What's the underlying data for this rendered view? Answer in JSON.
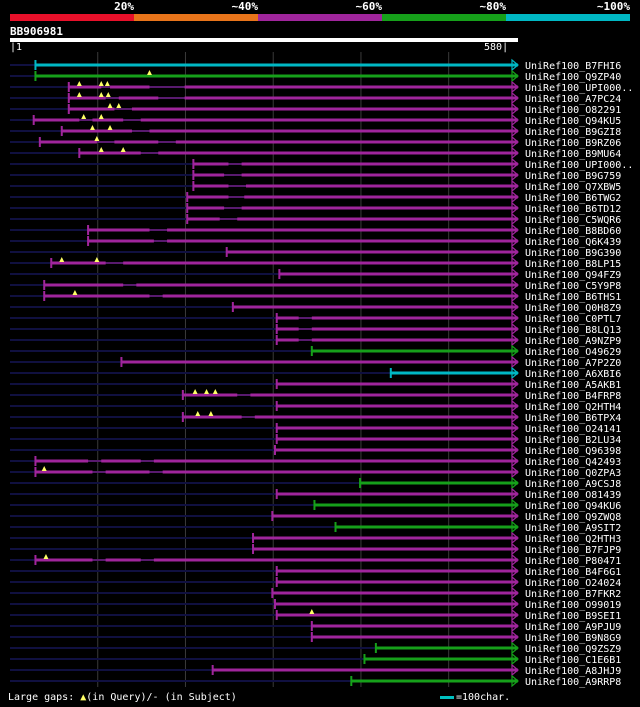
{
  "legend": {
    "labels": [
      "20%",
      "~40%",
      "~60%",
      "~80%",
      "~100%"
    ],
    "colors": [
      "#e8102a",
      "#e8741a",
      "#a0259c",
      "#16a01a",
      "#00b8c4"
    ]
  },
  "query": {
    "id": "BB906981",
    "start": "1",
    "end": "580"
  },
  "colors": {
    "background": "#000000",
    "connector": "#101040",
    "triangle": "#ffff66",
    "bar_default": "#a0259c"
  },
  "hits": [
    {
      "label": "UniRef100_B7FHI6",
      "start": 30,
      "end": 580,
      "color": "#00b8c4",
      "segs": [
        [
          30,
          580
        ]
      ],
      "tri": []
    },
    {
      "label": "UniRef100_Q9ZP40",
      "start": 30,
      "end": 580,
      "color": "#16a01a",
      "segs": [
        [
          30,
          580
        ]
      ],
      "tri": [
        160
      ]
    },
    {
      "label": "UniRef100_UPI000..",
      "start": 68,
      "end": 580,
      "color": "#a0259c",
      "segs": [
        [
          68,
          105
        ],
        [
          115,
          160
        ],
        [
          200,
          580
        ]
      ],
      "tri": [
        80,
        105,
        112
      ]
    },
    {
      "label": "UniRef100_A7PC24",
      "start": 68,
      "end": 580,
      "color": "#a0259c",
      "segs": [
        [
          68,
          110
        ],
        [
          125,
          170
        ],
        [
          200,
          580
        ]
      ],
      "tri": [
        80,
        105,
        113
      ]
    },
    {
      "label": "UniRef100_O82291",
      "start": 68,
      "end": 580,
      "color": "#a0259c",
      "segs": [
        [
          68,
          120
        ],
        [
          140,
          580
        ]
      ],
      "tri": [
        115,
        125
      ]
    },
    {
      "label": "UniRef100_Q94KU5",
      "start": 28,
      "end": 580,
      "color": "#a0259c",
      "segs": [
        [
          28,
          80
        ],
        [
          95,
          130
        ],
        [
          150,
          580
        ]
      ],
      "tri": [
        85,
        105
      ]
    },
    {
      "label": "UniRef100_B9GZI8",
      "start": 60,
      "end": 580,
      "color": "#a0259c",
      "segs": [
        [
          60,
          140
        ],
        [
          160,
          580
        ]
      ],
      "tri": [
        95,
        115
      ]
    },
    {
      "label": "UniRef100_B9RZ06",
      "start": 35,
      "end": 580,
      "color": "#a0259c",
      "segs": [
        [
          35,
          100
        ],
        [
          120,
          170
        ],
        [
          190,
          580
        ]
      ],
      "tri": [
        100
      ]
    },
    {
      "label": "UniRef100_B9MU64",
      "start": 80,
      "end": 580,
      "color": "#a0259c",
      "segs": [
        [
          80,
          150
        ],
        [
          170,
          580
        ]
      ],
      "tri": [
        105,
        130
      ]
    },
    {
      "label": "UniRef100_UPI000..",
      "start": 210,
      "end": 580,
      "color": "#a0259c",
      "segs": [
        [
          210,
          250
        ],
        [
          265,
          580
        ]
      ],
      "tri": []
    },
    {
      "label": "UniRef100_B9G759",
      "start": 210,
      "end": 580,
      "color": "#a0259c",
      "segs": [
        [
          210,
          245
        ],
        [
          265,
          580
        ]
      ],
      "tri": []
    },
    {
      "label": "UniRef100_Q7XBW5",
      "start": 210,
      "end": 580,
      "color": "#a0259c",
      "segs": [
        [
          210,
          250
        ],
        [
          270,
          580
        ]
      ],
      "tri": []
    },
    {
      "label": "UniRef100_B6TWG2",
      "start": 203,
      "end": 580,
      "color": "#a0259c",
      "segs": [
        [
          203,
          250
        ],
        [
          268,
          580
        ]
      ],
      "tri": []
    },
    {
      "label": "UniRef100_B6TD12",
      "start": 203,
      "end": 580,
      "color": "#a0259c",
      "segs": [
        [
          203,
          245
        ],
        [
          265,
          580
        ]
      ],
      "tri": []
    },
    {
      "label": "UniRef100_C5WQR6",
      "start": 203,
      "end": 580,
      "color": "#a0259c",
      "segs": [
        [
          203,
          240
        ],
        [
          260,
          580
        ]
      ],
      "tri": []
    },
    {
      "label": "UniRef100_B8BD60",
      "start": 90,
      "end": 580,
      "color": "#a0259c",
      "segs": [
        [
          90,
          160
        ],
        [
          180,
          580
        ]
      ],
      "tri": []
    },
    {
      "label": "UniRef100_Q6K439",
      "start": 90,
      "end": 580,
      "color": "#a0259c",
      "segs": [
        [
          90,
          165
        ],
        [
          180,
          580
        ]
      ],
      "tri": []
    },
    {
      "label": "UniRef100_B9G390",
      "start": 248,
      "end": 580,
      "color": "#a0259c",
      "segs": [
        [
          248,
          580
        ]
      ],
      "tri": []
    },
    {
      "label": "UniRef100_B8LP15",
      "start": 48,
      "end": 580,
      "color": "#a0259c",
      "segs": [
        [
          48,
          110
        ],
        [
          130,
          580
        ]
      ],
      "tri": [
        60,
        100
      ]
    },
    {
      "label": "UniRef100_Q94FZ9",
      "start": 308,
      "end": 580,
      "color": "#a0259c",
      "segs": [
        [
          308,
          580
        ]
      ],
      "tri": []
    },
    {
      "label": "UniRef100_C5Y9P8",
      "start": 40,
      "end": 580,
      "color": "#a0259c",
      "segs": [
        [
          40,
          130
        ],
        [
          145,
          580
        ]
      ],
      "tri": []
    },
    {
      "label": "UniRef100_B6THS1",
      "start": 40,
      "end": 580,
      "color": "#a0259c",
      "segs": [
        [
          40,
          160
        ],
        [
          175,
          580
        ]
      ],
      "tri": [
        75
      ]
    },
    {
      "label": "UniRef100_Q0H8Z9",
      "start": 255,
      "end": 580,
      "color": "#a0259c",
      "segs": [
        [
          255,
          580
        ]
      ],
      "tri": []
    },
    {
      "label": "UniRef100_C0PTL7",
      "start": 305,
      "end": 580,
      "color": "#a0259c",
      "segs": [
        [
          305,
          330
        ],
        [
          345,
          580
        ]
      ],
      "tri": []
    },
    {
      "label": "UniRef100_B8LQ13",
      "start": 305,
      "end": 580,
      "color": "#a0259c",
      "segs": [
        [
          305,
          330
        ],
        [
          345,
          580
        ]
      ],
      "tri": []
    },
    {
      "label": "UniRef100_A9NZP9",
      "start": 305,
      "end": 580,
      "color": "#a0259c",
      "segs": [
        [
          305,
          330
        ],
        [
          345,
          580
        ]
      ],
      "tri": []
    },
    {
      "label": "UniRef100_O49629",
      "start": 345,
      "end": 580,
      "color": "#16a01a",
      "segs": [
        [
          345,
          580
        ]
      ],
      "tri": []
    },
    {
      "label": "UniRef100_A7P2Z0",
      "start": 128,
      "end": 580,
      "color": "#a0259c",
      "segs": [
        [
          128,
          580
        ]
      ],
      "tri": []
    },
    {
      "label": "UniRef100_A6XBI6",
      "start": 435,
      "end": 580,
      "color": "#00b8c4",
      "segs": [
        [
          435,
          580
        ]
      ],
      "tri": []
    },
    {
      "label": "UniRef100_A5AKB1",
      "start": 305,
      "end": 580,
      "color": "#a0259c",
      "segs": [
        [
          305,
          580
        ]
      ],
      "tri": []
    },
    {
      "label": "UniRef100_B4FRP8",
      "start": 198,
      "end": 580,
      "color": "#a0259c",
      "segs": [
        [
          198,
          260
        ],
        [
          275,
          580
        ]
      ],
      "tri": [
        212,
        225,
        235
      ]
    },
    {
      "label": "UniRef100_Q2HTH4",
      "start": 305,
      "end": 580,
      "color": "#a0259c",
      "segs": [
        [
          305,
          580
        ]
      ],
      "tri": []
    },
    {
      "label": "UniRef100_B6TPX4",
      "start": 198,
      "end": 580,
      "color": "#a0259c",
      "segs": [
        [
          198,
          265
        ],
        [
          280,
          580
        ]
      ],
      "tri": [
        215,
        230
      ]
    },
    {
      "label": "UniRef100_O24141",
      "start": 305,
      "end": 580,
      "color": "#a0259c",
      "segs": [
        [
          305,
          580
        ]
      ],
      "tri": []
    },
    {
      "label": "UniRef100_B2LU34",
      "start": 305,
      "end": 580,
      "color": "#a0259c",
      "segs": [
        [
          305,
          580
        ]
      ],
      "tri": []
    },
    {
      "label": "UniRef100_Q96398",
      "start": 303,
      "end": 580,
      "color": "#a0259c",
      "segs": [
        [
          303,
          580
        ]
      ],
      "tri": []
    },
    {
      "label": "UniRef100_Q42493",
      "start": 30,
      "end": 580,
      "color": "#a0259c",
      "segs": [
        [
          30,
          90
        ],
        [
          105,
          150
        ],
        [
          165,
          580
        ]
      ],
      "tri": []
    },
    {
      "label": "UniRef100_Q0ZPA3",
      "start": 30,
      "end": 580,
      "color": "#a0259c",
      "segs": [
        [
          30,
          95
        ],
        [
          110,
          160
        ],
        [
          175,
          580
        ]
      ],
      "tri": [
        40
      ]
    },
    {
      "label": "UniRef100_A9CSJ8",
      "start": 400,
      "end": 580,
      "color": "#16a01a",
      "segs": [
        [
          400,
          580
        ]
      ],
      "tri": []
    },
    {
      "label": "UniRef100_O81439",
      "start": 305,
      "end": 580,
      "color": "#a0259c",
      "segs": [
        [
          305,
          580
        ]
      ],
      "tri": []
    },
    {
      "label": "UniRef100_Q94KU6",
      "start": 348,
      "end": 580,
      "color": "#16a01a",
      "segs": [
        [
          348,
          580
        ]
      ],
      "tri": []
    },
    {
      "label": "UniRef100_Q9ZWQ8",
      "start": 300,
      "end": 580,
      "color": "#a0259c",
      "segs": [
        [
          300,
          580
        ]
      ],
      "tri": []
    },
    {
      "label": "UniRef100_A9SIT2",
      "start": 372,
      "end": 580,
      "color": "#16a01a",
      "segs": [
        [
          372,
          580
        ]
      ],
      "tri": []
    },
    {
      "label": "UniRef100_Q2HTH3",
      "start": 278,
      "end": 580,
      "color": "#a0259c",
      "segs": [
        [
          278,
          580
        ]
      ],
      "tri": []
    },
    {
      "label": "UniRef100_B7FJP9",
      "start": 278,
      "end": 580,
      "color": "#a0259c",
      "segs": [
        [
          278,
          580
        ]
      ],
      "tri": []
    },
    {
      "label": "UniRef100_P80471",
      "start": 30,
      "end": 580,
      "color": "#a0259c",
      "segs": [
        [
          30,
          95
        ],
        [
          110,
          150
        ],
        [
          165,
          580
        ]
      ],
      "tri": [
        42
      ]
    },
    {
      "label": "UniRef100_B4F6G1",
      "start": 305,
      "end": 580,
      "color": "#a0259c",
      "segs": [
        [
          305,
          580
        ]
      ],
      "tri": []
    },
    {
      "label": "UniRef100_O24024",
      "start": 305,
      "end": 580,
      "color": "#a0259c",
      "segs": [
        [
          305,
          580
        ]
      ],
      "tri": []
    },
    {
      "label": "UniRef100_B7FKR2",
      "start": 300,
      "end": 580,
      "color": "#a0259c",
      "segs": [
        [
          300,
          580
        ]
      ],
      "tri": []
    },
    {
      "label": "UniRef100_O99019",
      "start": 303,
      "end": 580,
      "color": "#a0259c",
      "segs": [
        [
          303,
          580
        ]
      ],
      "tri": []
    },
    {
      "label": "UniRef100_B9SEI1",
      "start": 305,
      "end": 580,
      "color": "#a0259c",
      "segs": [
        [
          305,
          580
        ]
      ],
      "tri": [
        345
      ]
    },
    {
      "label": "UniRef100_A9PJU9",
      "start": 345,
      "end": 580,
      "color": "#a0259c",
      "segs": [
        [
          345,
          580
        ]
      ],
      "tri": []
    },
    {
      "label": "UniRef100_B9N8G9",
      "start": 345,
      "end": 580,
      "color": "#a0259c",
      "segs": [
        [
          345,
          580
        ]
      ],
      "tri": []
    },
    {
      "label": "UniRef100_Q9ZSZ9",
      "start": 418,
      "end": 580,
      "color": "#16a01a",
      "segs": [
        [
          418,
          580
        ]
      ],
      "tri": []
    },
    {
      "label": "UniRef100_C1E6B1",
      "start": 405,
      "end": 580,
      "color": "#16a01a",
      "segs": [
        [
          405,
          580
        ]
      ],
      "tri": []
    },
    {
      "label": "UniRef100_A8JHJ9",
      "start": 232,
      "end": 580,
      "color": "#a0259c",
      "segs": [
        [
          232,
          580
        ]
      ],
      "tri": []
    },
    {
      "label": "UniRef100_A9RRP8",
      "start": 390,
      "end": 580,
      "color": "#16a01a",
      "segs": [
        [
          390,
          580
        ]
      ],
      "tri": []
    }
  ],
  "footer": {
    "large_gaps_prefix": "Large gaps: ",
    "triangle_glyph": "▲",
    "in_query": "(in Query)/",
    "dash_glyph": "-",
    "in_subject": " (in Subject)",
    "scale_text": "=100char."
  }
}
